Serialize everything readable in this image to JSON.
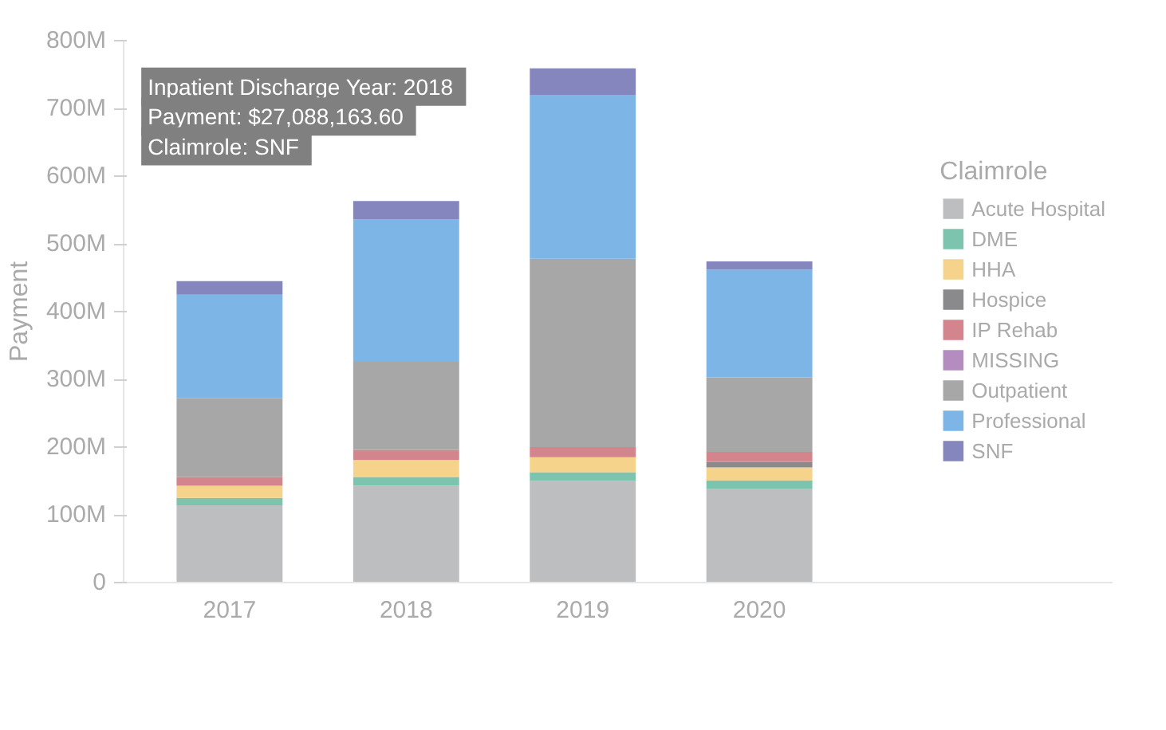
{
  "chart_data": {
    "type": "bar",
    "stacked": true,
    "ylabel": "Payment",
    "legend_title": "Claimrole",
    "legend": "right",
    "grid": false,
    "categories": [
      "2017",
      "2018",
      "2019",
      "2020"
    ],
    "ylim": [
      0,
      800
    ],
    "yticks": [
      {
        "value": 0,
        "label": "0"
      },
      {
        "value": 100,
        "label": "100M"
      },
      {
        "value": 200,
        "label": "200M"
      },
      {
        "value": 300,
        "label": "300M"
      },
      {
        "value": 400,
        "label": "400M"
      },
      {
        "value": 500,
        "label": "500M"
      },
      {
        "value": 600,
        "label": "600M"
      },
      {
        "value": 700,
        "label": "700M"
      },
      {
        "value": 800,
        "label": "800M"
      }
    ],
    "series": [
      {
        "name": "Acute Hospital",
        "color": "#bdbec0",
        "values": [
          114,
          143,
          150,
          138
        ]
      },
      {
        "name": "DME",
        "color": "#7cc4ad",
        "values": [
          11,
          13,
          13,
          13
        ]
      },
      {
        "name": "HHA",
        "color": "#f5d38a",
        "values": [
          18,
          25,
          22,
          19
        ]
      },
      {
        "name": "Hospice",
        "color": "#8a8a8c",
        "values": [
          0,
          0,
          0,
          8
        ]
      },
      {
        "name": "IP Rehab",
        "color": "#d4848c",
        "values": [
          13,
          15,
          15,
          15
        ]
      },
      {
        "name": "MISSING",
        "color": "#b48cc0",
        "values": [
          0,
          0,
          0,
          0
        ]
      },
      {
        "name": "Outpatient",
        "color": "#a7a7a7",
        "values": [
          116,
          130,
          278,
          110
        ]
      },
      {
        "name": "Professional",
        "color": "#7cb5e6",
        "values": [
          153,
          210,
          242,
          159
        ]
      },
      {
        "name": "SNF",
        "color": "#8586be",
        "values": [
          20,
          27.1,
          39,
          12
        ]
      }
    ],
    "annotations": [
      "Inpatient Discharge Year:  2018",
      "Payment:  $27,088,163.60",
      "Claimrole:  SNF"
    ]
  }
}
